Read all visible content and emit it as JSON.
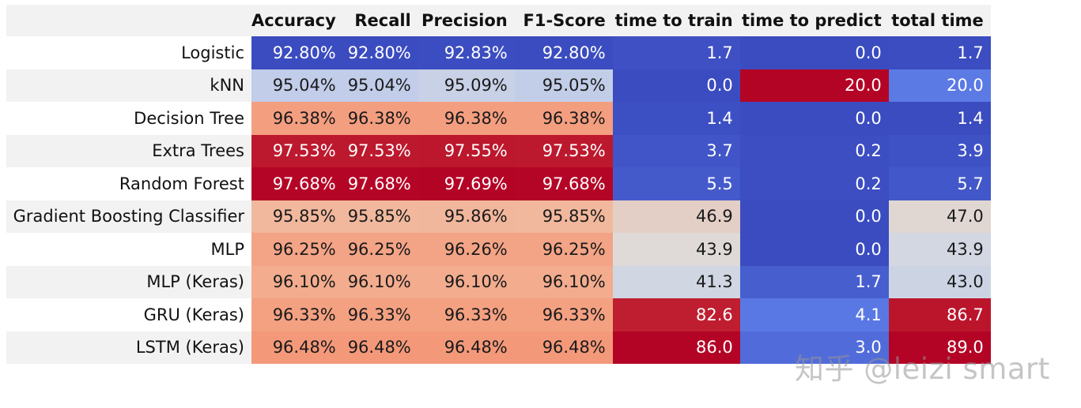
{
  "chart_data": {
    "type": "table",
    "title": "",
    "columns": [
      "Accuracy",
      "Recall",
      "Precision",
      "F1-Score",
      "time to train",
      "time to predict",
      "total time"
    ],
    "rows": [
      {
        "label": "Logistic",
        "values": [
          "92.80%",
          "92.80%",
          "92.83%",
          "92.80%",
          "1.7",
          "0.0",
          "1.7"
        ],
        "numbers": [
          92.8,
          92.8,
          92.83,
          92.8,
          1.7,
          0.0,
          1.7
        ]
      },
      {
        "label": "kNN",
        "values": [
          "95.04%",
          "95.04%",
          "95.09%",
          "95.05%",
          "0.0",
          "20.0",
          "20.0"
        ],
        "numbers": [
          95.04,
          95.04,
          95.09,
          95.05,
          0.0,
          20.0,
          20.0
        ]
      },
      {
        "label": "Decision Tree",
        "values": [
          "96.38%",
          "96.38%",
          "96.38%",
          "96.38%",
          "1.4",
          "0.0",
          "1.4"
        ],
        "numbers": [
          96.38,
          96.38,
          96.38,
          96.38,
          1.4,
          0.0,
          1.4
        ]
      },
      {
        "label": "Extra Trees",
        "values": [
          "97.53%",
          "97.53%",
          "97.55%",
          "97.53%",
          "3.7",
          "0.2",
          "3.9"
        ],
        "numbers": [
          97.53,
          97.53,
          97.55,
          97.53,
          3.7,
          0.2,
          3.9
        ]
      },
      {
        "label": "Random Forest",
        "values": [
          "97.68%",
          "97.68%",
          "97.69%",
          "97.68%",
          "5.5",
          "0.2",
          "5.7"
        ],
        "numbers": [
          97.68,
          97.68,
          97.69,
          97.68,
          5.5,
          0.2,
          5.7
        ]
      },
      {
        "label": "Gradient Boosting Classifier",
        "values": [
          "95.85%",
          "95.85%",
          "95.86%",
          "95.85%",
          "46.9",
          "0.0",
          "47.0"
        ],
        "numbers": [
          95.85,
          95.85,
          95.86,
          95.85,
          46.9,
          0.0,
          47.0
        ]
      },
      {
        "label": "MLP",
        "values": [
          "96.25%",
          "96.25%",
          "96.26%",
          "96.25%",
          "43.9",
          "0.0",
          "43.9"
        ],
        "numbers": [
          96.25,
          96.25,
          96.26,
          96.25,
          43.9,
          0.0,
          43.9
        ]
      },
      {
        "label": "MLP (Keras)",
        "values": [
          "96.10%",
          "96.10%",
          "96.10%",
          "96.10%",
          "41.3",
          "1.7",
          "43.0"
        ],
        "numbers": [
          96.1,
          96.1,
          96.1,
          96.1,
          41.3,
          1.7,
          43.0
        ]
      },
      {
        "label": "GRU (Keras)",
        "values": [
          "96.33%",
          "96.33%",
          "96.33%",
          "96.33%",
          "82.6",
          "4.1",
          "86.7"
        ],
        "numbers": [
          96.33,
          96.33,
          96.33,
          96.33,
          82.6,
          4.1,
          86.7
        ]
      },
      {
        "label": "LSTM (Keras)",
        "values": [
          "96.48%",
          "96.48%",
          "96.48%",
          "96.48%",
          "86.0",
          "3.0",
          "89.0"
        ],
        "numbers": [
          96.48,
          96.48,
          96.48,
          96.48,
          86.0,
          3.0,
          89.0
        ]
      }
    ],
    "colormap": "coolwarm",
    "color_groups": [
      {
        "columns": [
          0,
          1,
          2,
          3
        ],
        "vmin": 92.8,
        "vmax": 97.69
      },
      {
        "columns": [
          4
        ],
        "vmin": 0.0,
        "vmax": 86.0
      },
      {
        "columns": [
          5
        ],
        "vmin": 0.0,
        "vmax": 20.0
      },
      {
        "columns": [
          6
        ],
        "vmin": 1.4,
        "vmax": 89.0
      }
    ]
  },
  "watermark": "知乎 @leizi smart"
}
